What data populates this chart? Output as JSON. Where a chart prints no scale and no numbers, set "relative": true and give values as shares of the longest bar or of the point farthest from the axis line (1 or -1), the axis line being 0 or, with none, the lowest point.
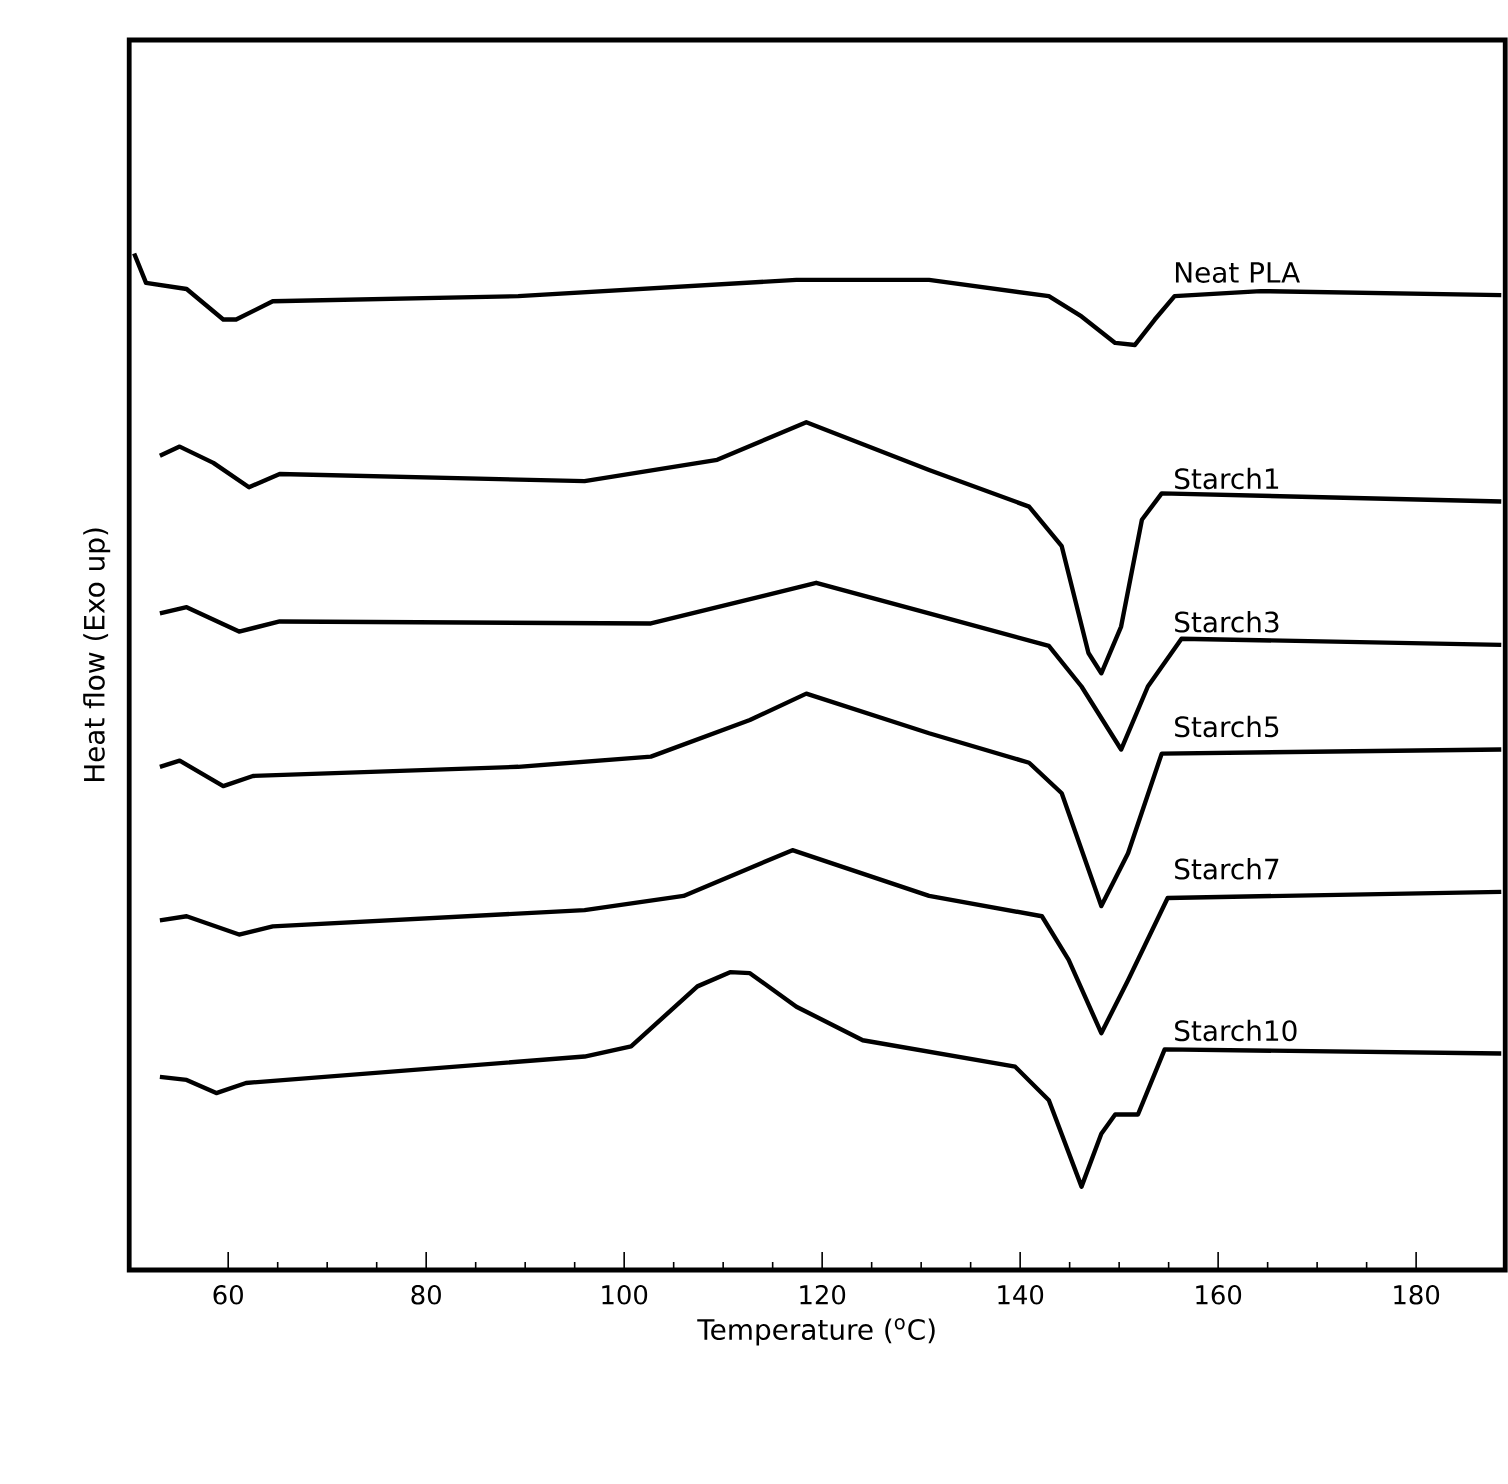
{
  "chart_data": {
    "type": "line",
    "relative": true,
    "xlabel": "Temperature ($^{o}$C)",
    "ylabel": "Heat flow (Exo up)",
    "xlim": [
      50,
      189
    ],
    "xticks": [
      60,
      80,
      100,
      120,
      140,
      160,
      180
    ],
    "grid": false,
    "marker": "none",
    "line_style": "solid",
    "series": [
      {
        "name": "Neat PLA",
        "color": "#000000",
        "x": [
          50.5,
          51.7,
          55.8,
          59.5,
          60.8,
          64.5,
          89.3,
          117.4,
          130.8,
          142.9,
          146.2,
          149.6,
          151.6,
          153.6,
          155.6,
          164.3,
          188.6
        ],
        "values": [
          1.0,
          0.971,
          0.965,
          0.935,
          0.935,
          0.953,
          0.958,
          0.974,
          0.974,
          0.958,
          0.938,
          0.912,
          0.91,
          0.935,
          0.958,
          0.963,
          0.959
        ]
      },
      {
        "name": "Starch1",
        "color": "#000000",
        "x": [
          53.1,
          55.1,
          58.5,
          62.1,
          65.2,
          96.0,
          109.4,
          118.4,
          130.8,
          140.9,
          144.2,
          146.9,
          148.2,
          150.2,
          152.3,
          154.3,
          188.6
        ],
        "values": [
          0.801,
          0.81,
          0.794,
          0.77,
          0.783,
          0.776,
          0.797,
          0.834,
          0.787,
          0.751,
          0.712,
          0.607,
          0.587,
          0.633,
          0.738,
          0.764,
          0.756
        ]
      },
      {
        "name": "Starch3",
        "color": "#000000",
        "x": [
          53.1,
          55.8,
          61.1,
          65.2,
          102.7,
          119.4,
          130.8,
          142.9,
          146.2,
          150.2,
          152.9,
          156.3,
          188.6
        ],
        "values": [
          0.646,
          0.652,
          0.628,
          0.638,
          0.636,
          0.676,
          0.646,
          0.614,
          0.574,
          0.512,
          0.574,
          0.621,
          0.615
        ]
      },
      {
        "name": "Starch5",
        "color": "#000000",
        "x": [
          53.1,
          55.1,
          59.5,
          62.5,
          89.3,
          102.7,
          112.7,
          118.4,
          130.8,
          140.9,
          144.2,
          148.2,
          150.9,
          154.3,
          188.6
        ],
        "values": [
          0.495,
          0.501,
          0.476,
          0.486,
          0.495,
          0.505,
          0.541,
          0.567,
          0.528,
          0.499,
          0.469,
          0.358,
          0.41,
          0.508,
          0.512
        ]
      },
      {
        "name": "Starch7",
        "color": "#000000",
        "x": [
          53.1,
          55.8,
          61.1,
          64.5,
          96.0,
          106.0,
          117.0,
          130.8,
          142.2,
          144.9,
          148.2,
          150.9,
          154.9,
          188.6
        ],
        "values": [
          0.344,
          0.348,
          0.33,
          0.338,
          0.354,
          0.368,
          0.413,
          0.368,
          0.348,
          0.305,
          0.233,
          0.285,
          0.366,
          0.372
        ]
      },
      {
        "name": "Starch10",
        "color": "#000000",
        "x": [
          53.1,
          55.8,
          58.8,
          61.8,
          96.0,
          100.7,
          107.4,
          110.7,
          112.7,
          117.4,
          124.1,
          139.5,
          142.9,
          146.2,
          148.2,
          149.6,
          151.9,
          154.6,
          188.6
        ],
        "values": [
          0.19,
          0.187,
          0.174,
          0.184,
          0.21,
          0.22,
          0.279,
          0.293,
          0.292,
          0.259,
          0.226,
          0.2,
          0.167,
          0.082,
          0.134,
          0.153,
          0.153,
          0.217,
          0.213
        ]
      }
    ]
  }
}
